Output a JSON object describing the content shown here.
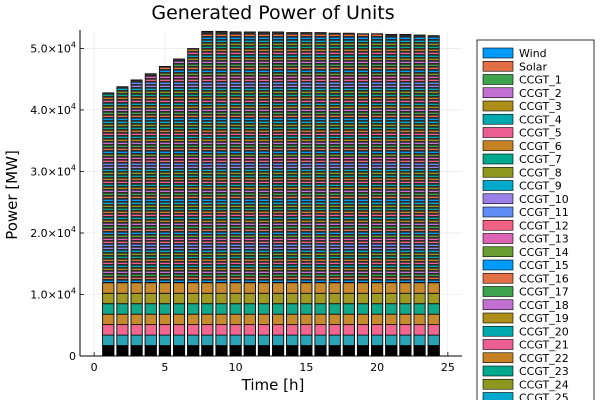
{
  "chart_data": {
    "type": "bar",
    "stacked": true,
    "title": "Generated Power of Units",
    "xlabel": "Time [h]",
    "ylabel": "Power [MW]",
    "xlim": [
      -1,
      26
    ],
    "ylim": [
      0,
      53000
    ],
    "grid": true,
    "legend_position": "outer-right",
    "x_ticks": [
      {
        "value": 0,
        "label": "0"
      },
      {
        "value": 5,
        "label": "5"
      },
      {
        "value": 10,
        "label": "10"
      },
      {
        "value": 15,
        "label": "15"
      },
      {
        "value": 20,
        "label": "20"
      },
      {
        "value": 25,
        "label": "25"
      }
    ],
    "y_ticks": [
      {
        "value": 0,
        "label": "0",
        "mantissa": "",
        "exponent": ""
      },
      {
        "value": 10000,
        "label": "1.0×10⁴",
        "mantissa": "1.0×10",
        "exponent": "4"
      },
      {
        "value": 20000,
        "label": "2.0×10⁴",
        "mantissa": "2.0×10",
        "exponent": "4"
      },
      {
        "value": 30000,
        "label": "3.0×10⁴",
        "mantissa": "3.0×10",
        "exponent": "4"
      },
      {
        "value": 40000,
        "label": "4.0×10⁴",
        "mantissa": "4.0×10",
        "exponent": "4"
      },
      {
        "value": 50000,
        "label": "5.0×10⁴",
        "mantissa": "5.0×10",
        "exponent": "4"
      }
    ],
    "x": [
      1,
      2,
      3,
      4,
      5,
      6,
      7,
      8,
      9,
      10,
      11,
      12,
      13,
      14,
      15,
      16,
      17,
      18,
      19,
      20,
      21,
      22,
      23,
      24
    ],
    "totals": [
      42800,
      43800,
      44900,
      45900,
      47100,
      48300,
      50000,
      52800,
      52800,
      52700,
      52700,
      52700,
      52700,
      52600,
      52600,
      52600,
      52500,
      52500,
      52400,
      52400,
      52300,
      52300,
      52200,
      52100
    ],
    "bottom_band_colors": [
      "#000000",
      "#2aa4b5",
      "#f0688f",
      "#c88a2e",
      "#14a88a",
      "#a09a24",
      "#c88a2e"
    ],
    "band_mw": 1700,
    "legend_entries": [
      {
        "name": "Wind",
        "color": "#009af9"
      },
      {
        "name": "Solar",
        "color": "#e26f46"
      },
      {
        "name": "CCGT_1",
        "color": "#3da44d"
      },
      {
        "name": "CCGT_2",
        "color": "#c271d2"
      },
      {
        "name": "CCGT_3",
        "color": "#ac8e18"
      },
      {
        "name": "CCGT_4",
        "color": "#00a9ad"
      },
      {
        "name": "CCGT_5",
        "color": "#ed5e93"
      },
      {
        "name": "CCGT_6",
        "color": "#c68125"
      },
      {
        "name": "CCGT_7",
        "color": "#00a98d"
      },
      {
        "name": "CCGT_8",
        "color": "#8e971e"
      },
      {
        "name": "CCGT_9",
        "color": "#00a8cb"
      },
      {
        "name": "CCGT_10",
        "color": "#9b7fe8"
      },
      {
        "name": "CCGT_11",
        "color": "#618df6"
      },
      {
        "name": "CCGT_12",
        "color": "#f16183"
      },
      {
        "name": "CCGT_13",
        "color": "#dd64b5"
      },
      {
        "name": "CCGT_14",
        "color": "#6b9e32"
      },
      {
        "name": "CCGT_15",
        "color": "#009af9"
      },
      {
        "name": "CCGT_16",
        "color": "#e26f46"
      },
      {
        "name": "CCGT_17",
        "color": "#3da44d"
      },
      {
        "name": "CCGT_18",
        "color": "#c271d2"
      },
      {
        "name": "CCGT_19",
        "color": "#ac8e18"
      },
      {
        "name": "CCGT_20",
        "color": "#00a9ad"
      },
      {
        "name": "CCGT_21",
        "color": "#ed5e93"
      },
      {
        "name": "CCGT_22",
        "color": "#c68125"
      },
      {
        "name": "CCGT_23",
        "color": "#00a98d"
      },
      {
        "name": "CCGT_24",
        "color": "#8e971e"
      },
      {
        "name": "CCGT_25",
        "color": "#00a8cb"
      }
    ]
  }
}
